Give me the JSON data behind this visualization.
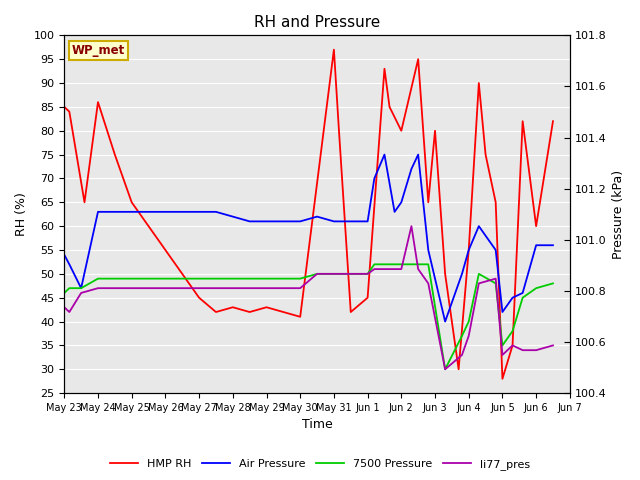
{
  "title": "RH and Pressure",
  "xlabel": "Time",
  "ylabel_left": "RH (%)",
  "ylabel_right": "Pressure (kPa)",
  "ylim_left": [
    25,
    100
  ],
  "ylim_right": [
    100.4,
    101.8
  ],
  "xtick_labels": [
    "May 23",
    "May 24",
    "May 25",
    "May 26",
    "May 27",
    "May 28",
    "May 29",
    "May 30",
    "May 31",
    "Jun 1",
    "Jun 2",
    "Jun 3",
    "Jun 4",
    "Jun 5",
    "Jun 6",
    "Jun 7"
  ],
  "wp_met_label": "WP_met",
  "legend_labels": [
    "HMP RH",
    "Air Pressure",
    "7500 Pressure",
    "li77_pres"
  ],
  "colors": [
    "#ff0000",
    "#0000ff",
    "#00cc00",
    "#aa00aa"
  ],
  "outer_bg": "#ffffff",
  "plot_bg": "#e8e8e8",
  "title_fontsize": 11,
  "axis_label_fontsize": 9,
  "tick_fontsize": 8,
  "hmp_rh": [
    85,
    84,
    65,
    86,
    75,
    65,
    60,
    55,
    50,
    45,
    42,
    43,
    42,
    43,
    41,
    97,
    80,
    42,
    45,
    93,
    85,
    80,
    95,
    65,
    80,
    50,
    30,
    55,
    90,
    75,
    65,
    28,
    35,
    82,
    60,
    82
  ],
  "hmp_x": [
    0,
    0.15,
    0.6,
    1.0,
    1.5,
    2.0,
    2.5,
    3.0,
    3.5,
    4.0,
    4.5,
    5.0,
    5.5,
    6.0,
    7.0,
    8.0,
    8.15,
    8.5,
    9.0,
    9.5,
    9.65,
    10.0,
    10.5,
    10.8,
    11.0,
    11.3,
    11.7,
    12.0,
    12.3,
    12.5,
    12.8,
    13.0,
    13.3,
    13.6,
    14.0,
    14.5
  ],
  "air_pres": [
    54,
    52,
    47,
    63,
    63,
    63,
    63,
    63,
    63,
    63,
    63,
    62,
    61,
    61,
    61,
    62,
    61,
    61,
    61,
    70,
    75,
    63,
    65,
    72,
    75,
    55,
    40,
    50,
    55,
    60,
    55,
    42,
    45,
    46,
    56,
    56
  ],
  "air_x": [
    0,
    0.15,
    0.5,
    1.0,
    1.5,
    2.0,
    2.5,
    3.0,
    3.5,
    4.0,
    4.5,
    5.0,
    5.5,
    6.0,
    7.0,
    7.5,
    8.0,
    8.5,
    9.0,
    9.2,
    9.5,
    9.8,
    10.0,
    10.3,
    10.5,
    10.8,
    11.3,
    11.8,
    12.0,
    12.3,
    12.8,
    13.0,
    13.3,
    13.6,
    14.0,
    14.5
  ],
  "p7500": [
    46,
    47,
    47,
    49,
    49,
    49,
    49,
    49,
    49,
    49,
    49,
    49,
    49,
    49,
    49,
    50,
    50,
    50,
    50,
    52,
    52,
    52,
    52,
    52,
    52,
    52,
    30,
    37,
    40,
    50,
    48,
    35,
    38,
    45,
    47,
    48
  ],
  "p7500_x": [
    0,
    0.15,
    0.5,
    1.0,
    1.5,
    2.0,
    2.5,
    3.0,
    3.5,
    4.0,
    4.5,
    5.0,
    5.5,
    6.0,
    7.0,
    7.5,
    8.0,
    8.5,
    9.0,
    9.2,
    9.5,
    9.8,
    10.0,
    10.3,
    10.5,
    10.8,
    11.3,
    11.8,
    12.0,
    12.3,
    12.8,
    13.0,
    13.3,
    13.6,
    14.0,
    14.5
  ],
  "li77": [
    43,
    42,
    46,
    47,
    47,
    47,
    47,
    47,
    47,
    47,
    47,
    47,
    47,
    47,
    47,
    50,
    50,
    50,
    50,
    51,
    51,
    51,
    51,
    60,
    51,
    48,
    30,
    33,
    37,
    48,
    49,
    33,
    35,
    34,
    34,
    35
  ],
  "li77_x": [
    0,
    0.15,
    0.5,
    1.0,
    1.5,
    2.0,
    2.5,
    3.0,
    3.5,
    4.0,
    4.5,
    5.0,
    5.5,
    6.0,
    7.0,
    7.5,
    8.0,
    8.5,
    9.0,
    9.2,
    9.5,
    9.8,
    10.0,
    10.3,
    10.5,
    10.8,
    11.3,
    11.8,
    12.0,
    12.3,
    12.8,
    13.0,
    13.3,
    13.6,
    14.0,
    14.5
  ],
  "yticks_left": [
    25,
    30,
    35,
    40,
    45,
    50,
    55,
    60,
    65,
    70,
    75,
    80,
    85,
    90,
    95,
    100
  ],
  "yticks_right": [
    100.4,
    100.6,
    100.8,
    101.0,
    101.2,
    101.4,
    101.6,
    101.8
  ]
}
